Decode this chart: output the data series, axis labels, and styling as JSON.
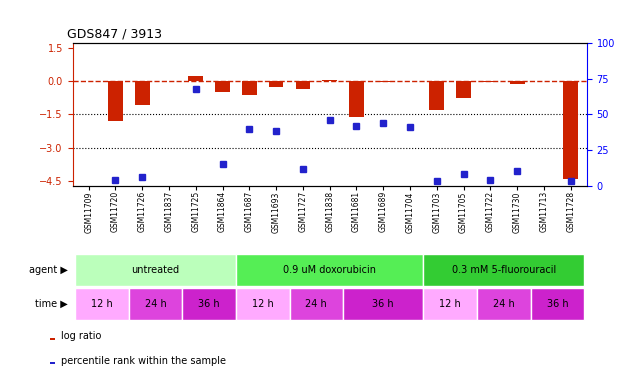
{
  "title": "GDS847 / 3913",
  "samples": [
    "GSM11709",
    "GSM11720",
    "GSM11726",
    "GSM11837",
    "GSM11725",
    "GSM11864",
    "GSM11687",
    "GSM11693",
    "GSM11727",
    "GSM11838",
    "GSM11681",
    "GSM11689",
    "GSM11704",
    "GSM11703",
    "GSM11705",
    "GSM11722",
    "GSM11730",
    "GSM11713",
    "GSM11728"
  ],
  "log_ratio": [
    0.0,
    -1.8,
    -1.1,
    0.0,
    0.22,
    -0.5,
    -0.65,
    -0.28,
    -0.38,
    0.05,
    -1.62,
    -0.05,
    -0.02,
    -1.3,
    -0.75,
    -0.05,
    -0.12,
    -0.02,
    -4.4
  ],
  "percentile": [
    null,
    4,
    6,
    null,
    68,
    15,
    40,
    38,
    12,
    46,
    42,
    44,
    41,
    3,
    8,
    4,
    10,
    null,
    3
  ],
  "agent_groups": [
    {
      "label": "untreated",
      "start": 0,
      "end": 6,
      "color": "#bbffbb"
    },
    {
      "label": "0.9 uM doxorubicin",
      "start": 6,
      "end": 13,
      "color": "#55ee55"
    },
    {
      "label": "0.3 mM 5-fluorouracil",
      "start": 13,
      "end": 19,
      "color": "#33cc33"
    }
  ],
  "time_groups": [
    {
      "label": "12 h",
      "start": 0,
      "end": 2,
      "color": "#ffaaff"
    },
    {
      "label": "24 h",
      "start": 2,
      "end": 4,
      "color": "#dd44dd"
    },
    {
      "label": "36 h",
      "start": 4,
      "end": 6,
      "color": "#cc22cc"
    },
    {
      "label": "12 h",
      "start": 6,
      "end": 8,
      "color": "#ffaaff"
    },
    {
      "label": "24 h",
      "start": 8,
      "end": 10,
      "color": "#dd44dd"
    },
    {
      "label": "36 h",
      "start": 10,
      "end": 13,
      "color": "#cc22cc"
    },
    {
      "label": "12 h",
      "start": 13,
      "end": 15,
      "color": "#ffaaff"
    },
    {
      "label": "24 h",
      "start": 15,
      "end": 17,
      "color": "#dd44dd"
    },
    {
      "label": "36 h",
      "start": 17,
      "end": 19,
      "color": "#cc22cc"
    }
  ],
  "bar_color": "#cc2200",
  "dot_color": "#2222cc",
  "dashed_line_color": "#cc2200",
  "ylim_left": [
    -4.7,
    1.7
  ],
  "ylim_right": [
    0,
    100
  ],
  "yticks_left": [
    1.5,
    0,
    -1.5,
    -3.0,
    -4.5
  ],
  "yticks_right": [
    100,
    75,
    50,
    25,
    0
  ],
  "hlines": [
    -1.5,
    -3.0
  ],
  "bg_color": "#ffffff",
  "chart_bg": "#ffffff"
}
